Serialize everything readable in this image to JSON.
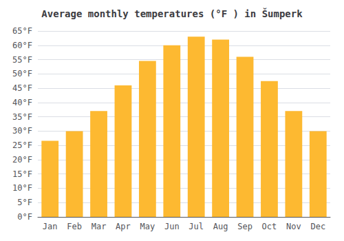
{
  "chart_data": {
    "type": "bar",
    "title": "Average monthly temperatures (°F ) in Šumperk",
    "categories": [
      "Jan",
      "Feb",
      "Mar",
      "Apr",
      "May",
      "Jun",
      "Jul",
      "Aug",
      "Sep",
      "Oct",
      "Nov",
      "Dec"
    ],
    "values": [
      26.6,
      30.0,
      37.0,
      46.0,
      54.5,
      60.0,
      63.0,
      62.0,
      56.0,
      47.5,
      37.0,
      30.0
    ],
    "color": "#FDB931",
    "ylim": [
      0,
      65
    ],
    "yticks": [
      {
        "value": 0,
        "label": "0°F"
      },
      {
        "value": 5,
        "label": "5°F"
      },
      {
        "value": 10,
        "label": "10°F"
      },
      {
        "value": 15,
        "label": "15°F"
      },
      {
        "value": 20,
        "label": "20°F"
      },
      {
        "value": 25,
        "label": "25°F"
      },
      {
        "value": 30,
        "label": "30°F"
      },
      {
        "value": 35,
        "label": "35°F"
      },
      {
        "value": 40,
        "label": "40°F"
      },
      {
        "value": 45,
        "label": "45°F"
      },
      {
        "value": 50,
        "label": "50°F"
      },
      {
        "value": 55,
        "label": "55°F"
      },
      {
        "value": 60,
        "label": "60°F"
      },
      {
        "value": 65,
        "label": "65°F"
      }
    ],
    "grid": true
  }
}
